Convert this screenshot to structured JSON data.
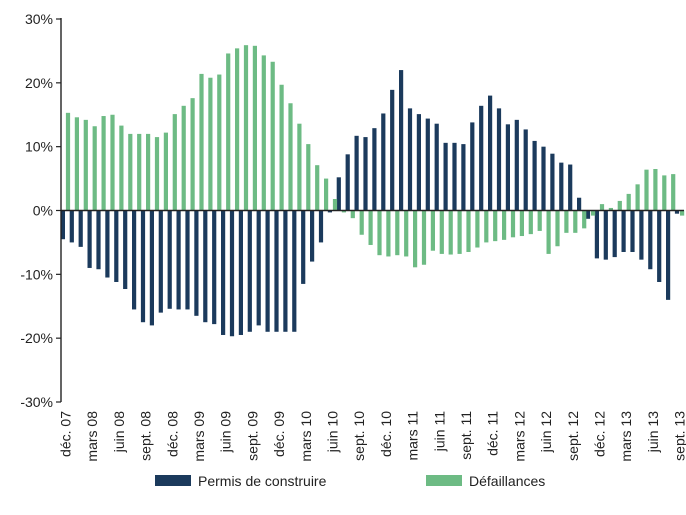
{
  "chart_data": {
    "type": "bar",
    "colors": {
      "permis": "#1b3a5c",
      "defaillances": "#6dbb84"
    },
    "ylim": [
      -30,
      30
    ],
    "yticks": [
      30,
      20,
      10,
      0,
      -10,
      -20,
      -30
    ],
    "ytick_labels": [
      "30%",
      "20%",
      "10%",
      "0%",
      "-10%",
      "-20%",
      "-30%"
    ],
    "categories": [
      "déc. 07",
      "janv. 08",
      "févr. 08",
      "mars 08",
      "avr. 08",
      "mai 08",
      "juin 08",
      "juil. 08",
      "août 08",
      "sept. 08",
      "oct. 08",
      "nov. 08",
      "déc. 08",
      "janv. 09",
      "févr. 09",
      "mars 09",
      "avr. 09",
      "mai 09",
      "juin 09",
      "juil. 09",
      "août 09",
      "sept. 09",
      "oct. 09",
      "nov. 09",
      "déc. 09",
      "janv. 10",
      "févr. 10",
      "mars 10",
      "avr. 10",
      "mai 10",
      "juin 10",
      "juil. 10",
      "août 10",
      "sept. 10",
      "oct. 10",
      "nov. 10",
      "déc. 10",
      "janv. 11",
      "févr. 11",
      "mars 11",
      "avr. 11",
      "mai 11",
      "juin 11",
      "juil. 11",
      "août 11",
      "sept. 11",
      "oct. 11",
      "nov. 11",
      "déc. 11",
      "janv. 12",
      "févr. 12",
      "mars 12",
      "avr. 12",
      "mai 12",
      "juin 12",
      "juil. 12",
      "août 12",
      "sept. 12",
      "oct. 12",
      "nov. 12",
      "déc. 12",
      "janv. 13",
      "févr. 13",
      "mars 13",
      "avr. 13",
      "mai 13",
      "juin 13",
      "juil. 13",
      "août 13",
      "sept. 13"
    ],
    "x_tick_labels": [
      {
        "index": 0,
        "label": "déc. 07"
      },
      {
        "index": 3,
        "label": "mars 08"
      },
      {
        "index": 6,
        "label": "juin 08"
      },
      {
        "index": 9,
        "label": "sept. 08"
      },
      {
        "index": 12,
        "label": "déc. 08"
      },
      {
        "index": 15,
        "label": "mars 09"
      },
      {
        "index": 18,
        "label": "juin 09"
      },
      {
        "index": 21,
        "label": "sept. 09"
      },
      {
        "index": 24,
        "label": "déc. 09"
      },
      {
        "index": 27,
        "label": "mars 10"
      },
      {
        "index": 30,
        "label": "juin 10"
      },
      {
        "index": 33,
        "label": "sept. 10"
      },
      {
        "index": 36,
        "label": "déc. 10"
      },
      {
        "index": 39,
        "label": "mars 11"
      },
      {
        "index": 42,
        "label": "juin 11"
      },
      {
        "index": 45,
        "label": "sept. 11"
      },
      {
        "index": 48,
        "label": "déc. 11"
      },
      {
        "index": 51,
        "label": "mars 12"
      },
      {
        "index": 54,
        "label": "juin 12"
      },
      {
        "index": 57,
        "label": "sept. 12"
      },
      {
        "index": 60,
        "label": "déc. 12"
      },
      {
        "index": 63,
        "label": "mars 13"
      },
      {
        "index": 66,
        "label": "juin 13"
      },
      {
        "index": 69,
        "label": "sept. 13"
      }
    ],
    "series": [
      {
        "name": "Permis de construire",
        "values": [
          -4.5,
          -5,
          -5.7,
          -9,
          -9.2,
          -10.5,
          -11.2,
          -12.3,
          -15.5,
          -17.5,
          -18,
          -16,
          -15.4,
          -15.5,
          -15.5,
          -16.5,
          -17.5,
          -17.8,
          -19.5,
          -19.7,
          -19.5,
          -19,
          -18,
          -19,
          -19,
          -19,
          -19,
          -11.5,
          -8,
          -5,
          -0.3,
          5.2,
          8.8,
          11.7,
          11.5,
          12.9,
          15.2,
          18.9,
          22,
          16,
          15.1,
          14.4,
          13.6,
          10.6,
          10.6,
          10.4,
          13.8,
          16.4,
          18,
          16,
          13.5,
          14.2,
          12.7,
          10.9,
          10,
          8.9,
          7.5,
          7.2,
          2,
          -1.3,
          -7.5,
          -7.7,
          -7.3,
          -6.5,
          -6.5,
          -7.7,
          -9.2,
          -11.2,
          -14,
          -0.5
        ]
      },
      {
        "name": "Défaillances",
        "values": [
          15.3,
          14.6,
          14.2,
          13.2,
          14.8,
          15,
          13.3,
          12,
          12,
          12,
          11.5,
          12.2,
          15.1,
          16.4,
          17.6,
          21.4,
          20.8,
          21.3,
          24.6,
          25.4,
          25.9,
          25.8,
          24.3,
          23.3,
          19.7,
          16.8,
          13.6,
          10.4,
          7.1,
          5,
          1.8,
          -0.3,
          -1.2,
          -3.8,
          -5.4,
          -7,
          -7.2,
          -7,
          -7.2,
          -8.9,
          -8.5,
          -6.3,
          -6.8,
          -6.9,
          -6.8,
          -6.5,
          -5.8,
          -5,
          -4.8,
          -4.6,
          -4.2,
          -4,
          -3.7,
          -3.2,
          -6.8,
          -5.6,
          -3.5,
          -3.5,
          -2.8,
          -0.8,
          1,
          0.4,
          1.5,
          2.6,
          4.1,
          6.4,
          6.5,
          5.5,
          5.7,
          -0.8
        ]
      }
    ]
  }
}
